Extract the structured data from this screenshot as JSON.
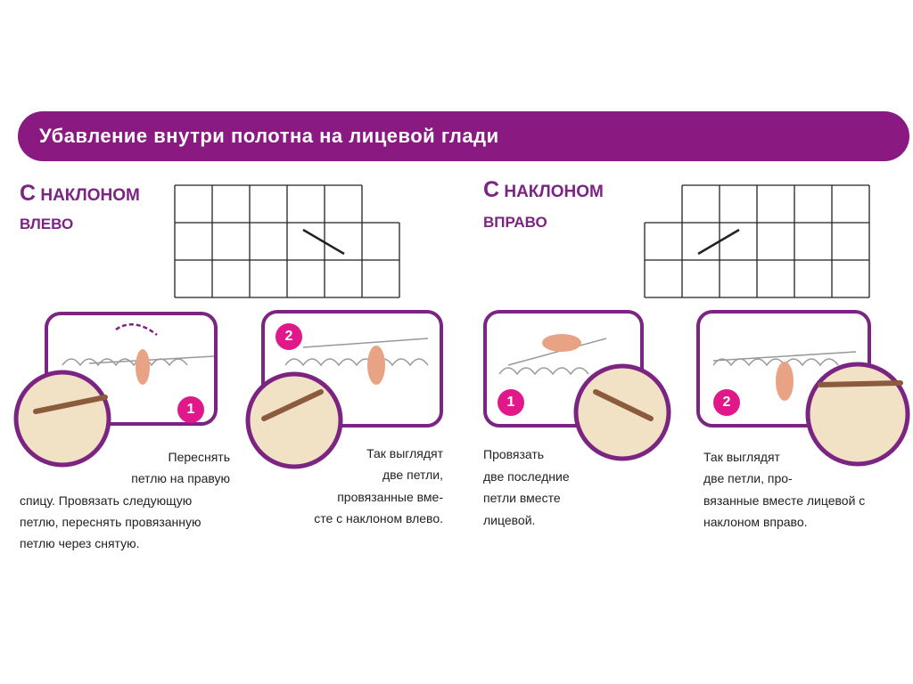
{
  "header": {
    "title": "Убавление внутри полотна на лицевой глади"
  },
  "sections": [
    {
      "title_first": "С",
      "title_rest": "НАКЛОНОМ",
      "title_line2": "ВЛЕВО",
      "steps": [
        {
          "number": "1",
          "lines": [
            "Переснять",
            "петлю на правую",
            "спицу. Провязать следующую",
            "петлю, переснять провязанную",
            "петлю через снятую."
          ]
        },
        {
          "number": "2",
          "lines": [
            "Так выглядят",
            "две петли,",
            "провязанные вме-",
            "сте с наклоном влево."
          ]
        }
      ]
    },
    {
      "title_first": "С",
      "title_rest": "НАКЛОНОМ",
      "title_line2": "ВПРАВО",
      "steps": [
        {
          "number": "1",
          "lines": [
            "Провязать",
            "две последние",
            "петли вместе",
            "лицевой."
          ]
        },
        {
          "number": "2",
          "lines": [
            "Так выглядят",
            "две петли, про-",
            "вязанные вместе лицевой с",
            "наклоном вправо."
          ]
        }
      ]
    }
  ]
}
